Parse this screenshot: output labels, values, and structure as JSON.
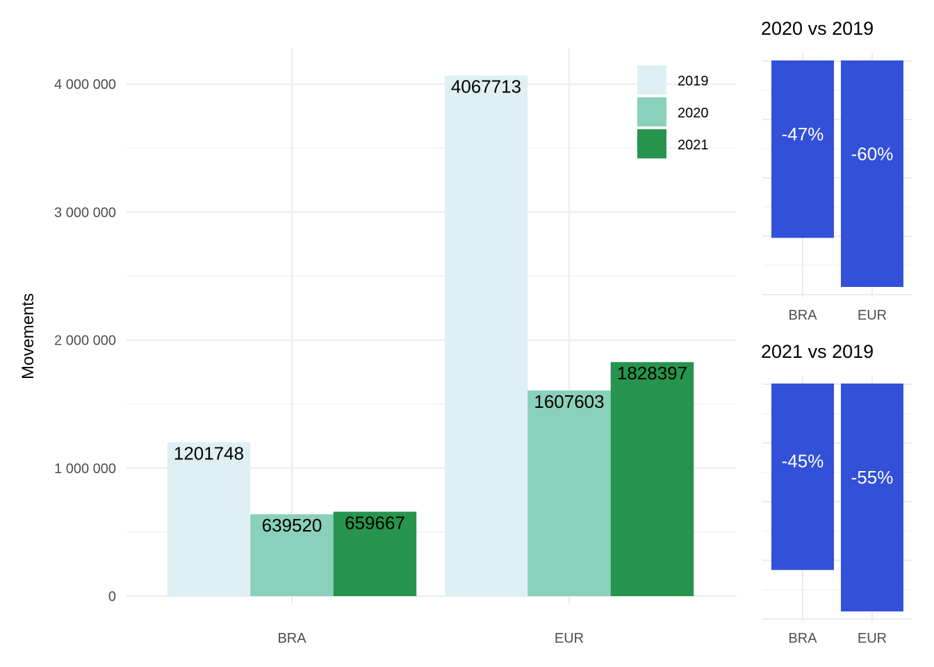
{
  "chart_data": [
    {
      "type": "bar",
      "ylabel": "Movements",
      "categories": [
        "BRA",
        "EUR"
      ],
      "ylim": [
        0,
        4300000
      ],
      "yticks": [
        0,
        1000000,
        2000000,
        3000000,
        4000000
      ],
      "ytick_labels": [
        "0",
        "1 000 000",
        "2 000 000",
        "3 000 000",
        "4 000 000"
      ],
      "legend_position": "top-right",
      "series": [
        {
          "name": "2019",
          "color": "#dff0f4",
          "values": [
            1201748,
            4067713
          ],
          "labels": [
            "1201748",
            "4067713"
          ]
        },
        {
          "name": "2020",
          "color": "#8ad0bb",
          "values": [
            639520,
            1607603
          ],
          "labels": [
            "639520",
            "1607603"
          ]
        },
        {
          "name": "2021",
          "color": "#26944d",
          "values": [
            659667,
            1828397
          ],
          "labels": [
            "659667",
            "1828397"
          ]
        }
      ]
    },
    {
      "type": "bar",
      "title": "2020 vs 2019",
      "categories": [
        "BRA",
        "EUR"
      ],
      "values": [
        -47,
        -60
      ],
      "labels": [
        "-47%",
        "-60%"
      ],
      "color": "#3350d9"
    },
    {
      "type": "bar",
      "title": "2021 vs 2019",
      "categories": [
        "BRA",
        "EUR"
      ],
      "values": [
        -45,
        -55
      ],
      "labels": [
        "-45%",
        "-55%"
      ],
      "color": "#3350d9"
    }
  ]
}
